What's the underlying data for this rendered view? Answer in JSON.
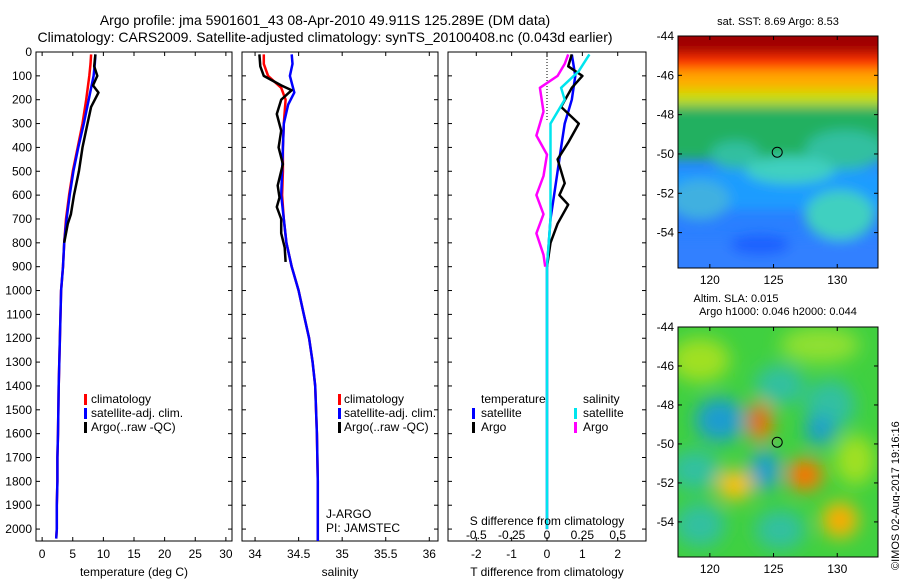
{
  "header": {
    "title_line1": "Argo profile: jma 5901601_43 08-Apr-2010 49.911S 125.289E (DM data)",
    "title_line2": "Climatology: CARS2009. Satellite-adjusted climatology: synTS_20100408.nc (0.043d earlier)"
  },
  "credit": "©IMOS 02-Aug-2017 19:16:16",
  "colors": {
    "climatology": "#ff0000",
    "satellite": "#0000ff",
    "argo": "#000000",
    "salinity_satellite": "#00e5ee",
    "salinity_argo": "#ff00ff"
  },
  "chart_data": [
    {
      "id": "temperature",
      "type": "line",
      "xlabel": "temperature (deg C)",
      "ylabel": "",
      "xlim": [
        -1,
        31
      ],
      "ylim": [
        2050,
        0
      ],
      "y_reversed": true,
      "xticks": [
        0,
        5,
        10,
        15,
        20,
        25,
        30
      ],
      "yticks": [
        0,
        100,
        200,
        300,
        400,
        500,
        600,
        700,
        800,
        900,
        1000,
        1100,
        1200,
        1300,
        1400,
        1500,
        1600,
        1700,
        1800,
        1900,
        2000
      ],
      "legend": {
        "placement": "lower-middle",
        "entries": [
          "climatology",
          "satellite-adj. clim.",
          "Argo(..raw -QC)"
        ]
      },
      "series": [
        {
          "name": "climatology",
          "color": "#ff0000",
          "x": [
            8.0,
            7.9,
            7.7,
            7.2,
            6.6,
            5.8,
            5.0,
            4.4,
            3.9,
            3.6,
            3.4,
            3.1,
            2.9,
            2.7,
            2.6,
            2.5,
            2.5,
            2.4,
            2.4,
            2.3
          ],
          "y": [
            10,
            50,
            100,
            200,
            300,
            400,
            500,
            600,
            700,
            800,
            900,
            1000,
            1200,
            1400,
            1600,
            1700,
            1800,
            1900,
            2000,
            2040
          ]
        },
        {
          "name": "satellite-adj. clim.",
          "color": "#0000ff",
          "x": [
            8.7,
            8.6,
            8.4,
            7.6,
            6.8,
            5.9,
            5.1,
            4.5,
            4.0,
            3.6,
            3.4,
            3.1,
            2.9,
            2.7,
            2.6,
            2.5,
            2.5,
            2.4,
            2.4,
            2.3
          ],
          "y": [
            10,
            50,
            100,
            200,
            300,
            400,
            500,
            600,
            700,
            800,
            900,
            1000,
            1200,
            1400,
            1600,
            1700,
            1800,
            1900,
            2000,
            2040
          ]
        },
        {
          "name": "Argo(..raw -QC)",
          "color": "#000000",
          "x": [
            8.7,
            8.5,
            9.0,
            8.3,
            9.2,
            8.0,
            7.4,
            6.6,
            6.0,
            5.2,
            4.7,
            4.2,
            3.9,
            3.6
          ],
          "y": [
            10,
            60,
            100,
            140,
            170,
            230,
            300,
            400,
            500,
            600,
            680,
            720,
            760,
            800
          ]
        }
      ]
    },
    {
      "id": "salinity",
      "type": "line",
      "xlabel": "salinity",
      "ylabel": "",
      "xlim": [
        33.85,
        36.1
      ],
      "ylim": [
        2050,
        0
      ],
      "y_reversed": true,
      "xticks": [
        34,
        34.5,
        35,
        35.5,
        36
      ],
      "legend": {
        "placement": "lower-right",
        "entries": [
          "climatology",
          "satellite-adj. clim.",
          "Argo(..raw -QC)"
        ]
      },
      "annotations": [
        "J-ARGO",
        "PI: JAMSTEC"
      ],
      "series": [
        {
          "name": "climatology",
          "color": "#ff0000",
          "x": [
            34.1,
            34.1,
            34.15,
            34.3,
            34.35,
            34.33,
            34.32,
            34.32,
            34.31,
            34.33,
            34.36,
            34.42,
            34.5,
            34.56,
            34.62,
            34.66,
            34.69,
            34.71,
            34.72,
            34.72
          ],
          "y": [
            10,
            50,
            100,
            150,
            200,
            300,
            400,
            500,
            600,
            700,
            800,
            900,
            1000,
            1100,
            1200,
            1300,
            1400,
            1600,
            1800,
            2050
          ]
        },
        {
          "name": "satellite-adj. clim.",
          "color": "#0000ff",
          "x": [
            34.42,
            34.43,
            34.4,
            34.45,
            34.38,
            34.33,
            34.32,
            34.31,
            34.3,
            34.33,
            34.36,
            34.42,
            34.5,
            34.56,
            34.62,
            34.66,
            34.69,
            34.71,
            34.72,
            34.72
          ],
          "y": [
            10,
            50,
            100,
            170,
            220,
            300,
            400,
            500,
            600,
            700,
            800,
            900,
            1000,
            1100,
            1200,
            1300,
            1400,
            1600,
            1800,
            2050
          ]
        },
        {
          "name": "Argo(..raw -QC)",
          "color": "#000000",
          "x": [
            34.05,
            34.06,
            34.1,
            34.3,
            34.42,
            34.3,
            34.25,
            34.3,
            34.27,
            34.32,
            34.26,
            34.28,
            34.25,
            34.3,
            34.3,
            34.34,
            34.35
          ],
          "y": [
            10,
            60,
            100,
            140,
            160,
            200,
            260,
            330,
            400,
            470,
            560,
            610,
            650,
            700,
            760,
            820,
            880
          ]
        }
      ]
    },
    {
      "id": "difference",
      "type": "line",
      "xlabel": "T difference from climatology",
      "xlabel2": "S difference from climatology",
      "ylabel": "",
      "xlim": [
        -2.8,
        2.8
      ],
      "ylim": [
        2050,
        0
      ],
      "y_reversed": true,
      "xticks_T": [
        -2,
        -1,
        0,
        1,
        2
      ],
      "xticks_S_values": [
        -0.5,
        -0.25,
        0,
        0.25,
        0.5
      ],
      "xticks_S": [
        "-0.5",
        "-0.25",
        "0",
        "0.25",
        "0.5"
      ],
      "legend_temperature": {
        "title": "temperature",
        "entries": [
          "satellite",
          "Argo"
        ]
      },
      "legend_salinity": {
        "title": "salinity",
        "entries": [
          "satellite",
          "Argo"
        ]
      },
      "series": [
        {
          "name": "satellite",
          "group": "temperature",
          "color": "#0000ff",
          "x": [
            0.7,
            0.8,
            0.7,
            0.5,
            0.4,
            0.3,
            0.2,
            0.1,
            0.05,
            0.0,
            0.0,
            0.0,
            0.0,
            0.0,
            0.0
          ],
          "y": [
            10,
            100,
            200,
            300,
            400,
            500,
            600,
            700,
            800,
            900,
            1000,
            1200,
            1400,
            1600,
            2000
          ]
        },
        {
          "name": "Argo",
          "group": "temperature",
          "color": "#000000",
          "x": [
            0.7,
            0.6,
            1.0,
            0.7,
            0.4,
            0.9,
            0.6,
            0.3,
            0.5,
            0.35,
            0.6,
            0.3,
            0.1,
            0.0
          ],
          "y": [
            10,
            60,
            100,
            150,
            230,
            300,
            380,
            450,
            550,
            600,
            640,
            720,
            800,
            900
          ]
        },
        {
          "name": "satellite",
          "group": "salinity",
          "color": "#00e5ee",
          "x": [
            1.2,
            0.9,
            0.4,
            0.5,
            0.1,
            0.1,
            0.1,
            0.1,
            0.1,
            0.05,
            0.0,
            0.0,
            0.0,
            0.0
          ],
          "y": [
            10,
            80,
            150,
            200,
            300,
            400,
            500,
            600,
            700,
            800,
            900,
            1200,
            1500,
            2000
          ]
        },
        {
          "name": "Argo",
          "group": "salinity",
          "color": "#ff00ff",
          "x": [
            0.6,
            0.5,
            0.3,
            -0.2,
            -0.1,
            -0.3,
            0.0,
            -0.1,
            -0.3,
            -0.1,
            -0.3,
            -0.1,
            -0.05
          ],
          "y": [
            10,
            50,
            100,
            150,
            250,
            350,
            430,
            520,
            600,
            680,
            760,
            850,
            900
          ]
        }
      ]
    },
    {
      "id": "sst-map",
      "type": "heatmap",
      "title": "sat. SST: 8.69 Argo: 8.53",
      "xticks": [
        120,
        125,
        130
      ],
      "yticks": [
        -44,
        -46,
        -48,
        -50,
        -52,
        -54
      ],
      "xlim": [
        117.5,
        133.2
      ],
      "ylim": [
        -55.8,
        -44
      ],
      "marker": {
        "lon": 125.289,
        "lat": -49.911
      }
    },
    {
      "id": "sla-map",
      "type": "heatmap",
      "title_line1": "Altim. SLA: 0.015",
      "title_line2": "Argo h1000: 0.046 h2000: 0.044",
      "xticks": [
        120,
        125,
        130
      ],
      "yticks": [
        -44,
        -46,
        -48,
        -50,
        -52,
        -54
      ],
      "xlim": [
        117.5,
        133.2
      ],
      "ylim": [
        -55.8,
        -44
      ],
      "marker": {
        "lon": 125.289,
        "lat": -49.911
      }
    }
  ]
}
